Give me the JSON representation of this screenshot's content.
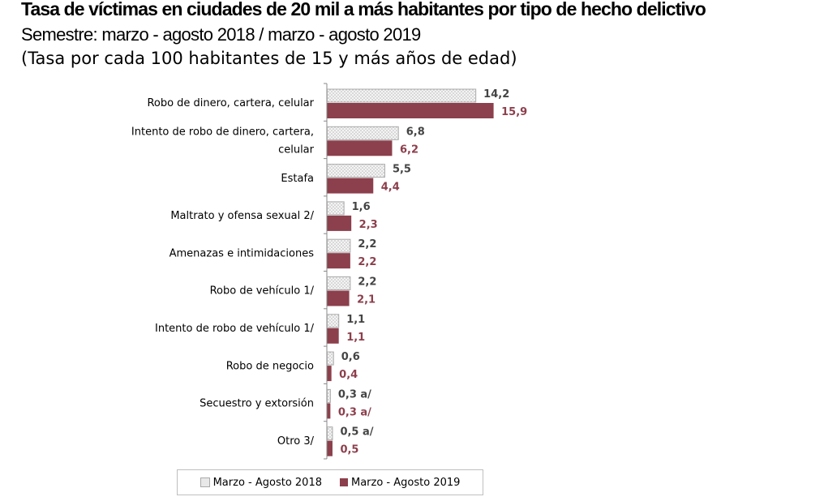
{
  "chart_data": {
    "type": "bar",
    "orientation": "horizontal",
    "title": "Tasa de víctimas en ciudades de 20 mil a más habitantes por tipo de hecho delictivo",
    "subtitle": "Semestre: marzo - agosto 2018 / marzo - agosto 2019",
    "subtitle2": "(Tasa por cada 100 habitantes de 15 y más años de edad)",
    "categories": [
      [
        "Robo de dinero, cartera, celular"
      ],
      [
        "Intento de robo de dinero, cartera,",
        "celular"
      ],
      [
        "Estafa"
      ],
      [
        "Maltrato y ofensa sexual 2/"
      ],
      [
        "Amenazas e intimidaciones"
      ],
      [
        "Robo  de vehículo 1/"
      ],
      [
        "Intento de robo de vehículo 1/"
      ],
      [
        "Robo de negocio"
      ],
      [
        "Secuestro y extorsión"
      ],
      [
        "Otro 3/"
      ]
    ],
    "series": [
      {
        "name": "Marzo - Agosto 2018",
        "color": "#e8e8e8",
        "pattern": "dotted",
        "values": [
          14.2,
          6.8,
          5.5,
          1.6,
          2.2,
          2.2,
          1.1,
          0.6,
          0.3,
          0.5
        ],
        "labels": [
          "14,2",
          "6,8",
          "5,5",
          "1,6",
          "2,2",
          "2,2",
          "1,1",
          "0,6",
          "0,3 a/",
          "0,5 a/"
        ]
      },
      {
        "name": "Marzo - Agosto 2019",
        "color": "#8c3f4c",
        "values": [
          15.9,
          6.2,
          4.4,
          2.3,
          2.2,
          2.1,
          1.1,
          0.4,
          0.3,
          0.5
        ],
        "labels": [
          "15,9",
          "6,2",
          "4,4",
          "2,3",
          "2,2",
          "2,1",
          "1,1",
          "0,4",
          "0,3 a/",
          "0,5"
        ]
      }
    ],
    "legend_position": "bottom",
    "grid": false
  }
}
